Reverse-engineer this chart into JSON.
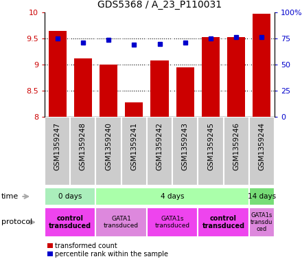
{
  "title": "GDS5368 / A_23_P110031",
  "samples": [
    "GSM1359247",
    "GSM1359248",
    "GSM1359240",
    "GSM1359241",
    "GSM1359242",
    "GSM1359243",
    "GSM1359245",
    "GSM1359246",
    "GSM1359244"
  ],
  "bar_values": [
    9.65,
    9.12,
    9.0,
    8.28,
    9.08,
    8.95,
    9.52,
    9.52,
    9.97
  ],
  "dot_values": [
    75,
    71,
    74,
    69,
    70,
    71,
    75,
    76,
    76
  ],
  "ylim": [
    8.0,
    10.0
  ],
  "yticks_left": [
    8.0,
    8.5,
    9.0,
    9.5,
    10.0
  ],
  "yticks_right": [
    0,
    25,
    50,
    75,
    100
  ],
  "bar_color": "#cc0000",
  "dot_color": "#0000cc",
  "time_groups": [
    {
      "label": "0 days",
      "start": 0,
      "end": 2,
      "color": "#aaeebb"
    },
    {
      "label": "4 days",
      "start": 2,
      "end": 8,
      "color": "#aaffaa"
    },
    {
      "label": "14 days",
      "start": 8,
      "end": 9,
      "color": "#77dd77"
    }
  ],
  "protocol_groups": [
    {
      "label": "control\ntransduced",
      "start": 0,
      "end": 2,
      "color": "#ee44ee",
      "bold": true,
      "fontsize": 7
    },
    {
      "label": "GATA1\ntransduced",
      "start": 2,
      "end": 4,
      "color": "#dd88dd",
      "bold": false,
      "fontsize": 6.5
    },
    {
      "label": "GATA1s\ntransduced",
      "start": 4,
      "end": 6,
      "color": "#ee44ee",
      "bold": false,
      "fontsize": 6.5
    },
    {
      "label": "control\ntransduced",
      "start": 6,
      "end": 8,
      "color": "#ee44ee",
      "bold": true,
      "fontsize": 7
    },
    {
      "label": "GATA1s\ntransdu\nced",
      "start": 8,
      "end": 9,
      "color": "#dd88dd",
      "bold": false,
      "fontsize": 6
    }
  ],
  "legend_items": [
    {
      "label": "transformed count",
      "color": "#cc0000"
    },
    {
      "label": "percentile rank within the sample",
      "color": "#0000cc"
    }
  ],
  "bar_width": 0.7,
  "sample_box_color": "#cccccc",
  "label_color": "#888888",
  "ytick_left_labels": [
    "8",
    "8.5",
    "9",
    "9.5",
    "10"
  ],
  "ytick_right_labels": [
    "0",
    "25",
    "50",
    "75",
    "100%"
  ],
  "grid_yticks": [
    8.5,
    9.0,
    9.5
  ]
}
